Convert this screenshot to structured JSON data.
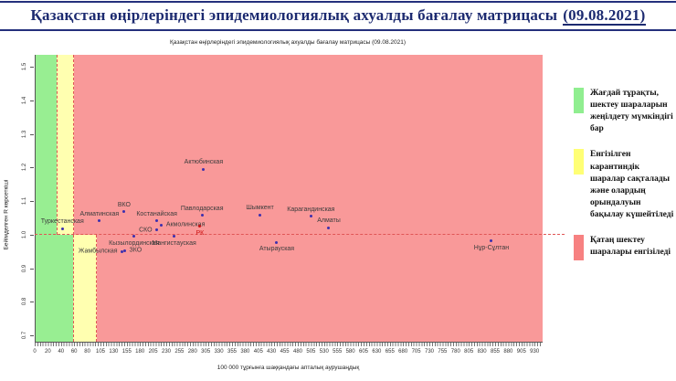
{
  "header": {
    "title": "Қазақстан өңірлеріндегі эпидемиологиялық ахуалды бағалау матрицасы",
    "date": "(09.08.2021)"
  },
  "chart_data": {
    "type": "scatter",
    "title": "Қазақстан өңірлеріндегі эпидемиологиялық ахуалды бағалау матрицасы  (09.08.2021)",
    "xlabel": "100 000 тұрғынға шаққандағы апталық аурушаңдық",
    "ylabel": "Бейімделген R көрсеткіші",
    "x_tick_labels": [
      0,
      20,
      40,
      60,
      80,
      105,
      130,
      155,
      180,
      205,
      230,
      255,
      280,
      305,
      330,
      355,
      380,
      405,
      430,
      455,
      480,
      505,
      530,
      555,
      580,
      605,
      630,
      655,
      680,
      705,
      730,
      755,
      780,
      805,
      830,
      855,
      880,
      905,
      930
    ],
    "y_ticks": [
      0.7,
      0.8,
      0.9,
      1.0,
      1.1,
      1.2,
      1.3,
      1.4,
      1.5
    ],
    "ylim": [
      0.68,
      1.54
    ],
    "r_reference_line": 1.0,
    "grid": false,
    "legend_position": "right",
    "zone_colors": {
      "green": "#98ee92",
      "yellow": "#ffffb0",
      "red": "#f99999"
    },
    "zones": {
      "above_r1": {
        "green_max": 32,
        "yellow_max": 58
      },
      "below_r1": {
        "green_max": 57,
        "yellow_max": 97
      }
    },
    "point_color": "#3c2fae",
    "reference_point_color": "#cc1111",
    "points": [
      {
        "region": "Туркестанская",
        "x": 42,
        "r": 1.018,
        "lp": "above"
      },
      {
        "region": "Алматинская",
        "x": 103,
        "r": 1.041,
        "lp": "above"
      },
      {
        "region": "Жамбылская",
        "x": 146,
        "r": 0.949,
        "lp": "left"
      },
      {
        "region": "ЗКО",
        "x": 151,
        "r": 0.953,
        "lp": "right"
      },
      {
        "region": "ВКО",
        "x": 150,
        "r": 1.068,
        "lp": "above"
      },
      {
        "region": "Кызылординская",
        "x": 169,
        "r": 0.994,
        "lp": "below"
      },
      {
        "region": "СКО",
        "x": 212,
        "r": 1.014,
        "lp": "left"
      },
      {
        "region": "Костанайская",
        "x": 212,
        "r": 1.041,
        "lp": "above"
      },
      {
        "region": "Акмолинская",
        "x": 221,
        "r": 1.029,
        "lp": "right"
      },
      {
        "region": "Мангистауская",
        "x": 245,
        "r": 0.994,
        "lp": "below"
      },
      {
        "region": "РК",
        "x": 294,
        "r": 1.024,
        "lp": "below",
        "ref": true
      },
      {
        "region": "Павлодарская",
        "x": 298,
        "r": 1.057,
        "lp": "above"
      },
      {
        "region": "Актюбинская",
        "x": 301,
        "r": 1.195,
        "lp": "above"
      },
      {
        "region": "Шымкент",
        "x": 408,
        "r": 1.059,
        "lp": "above"
      },
      {
        "region": "Атырауская",
        "x": 440,
        "r": 0.977,
        "lp": "below"
      },
      {
        "region": "Карагандинская",
        "x": 505,
        "r": 1.054,
        "lp": "above"
      },
      {
        "region": "Алматы",
        "x": 539,
        "r": 1.02,
        "lp": "above"
      },
      {
        "region": "Нұр-Сұлтан",
        "x": 848,
        "r": 0.981,
        "lp": "below"
      }
    ]
  },
  "legend": {
    "items": [
      {
        "color": "#90ee90",
        "text": "Жағдай тұрақты, шектеу шараларын жеңілдету мүмкіндігі бар"
      },
      {
        "color": "#ffff75",
        "text": "Енгізілген карантиндік шаралар сақталады және олардың орындалуын бақылау күшейтіледі"
      },
      {
        "color": "#f78181",
        "text": "Қатаң шектеу шаралары енгізіледі"
      }
    ]
  }
}
